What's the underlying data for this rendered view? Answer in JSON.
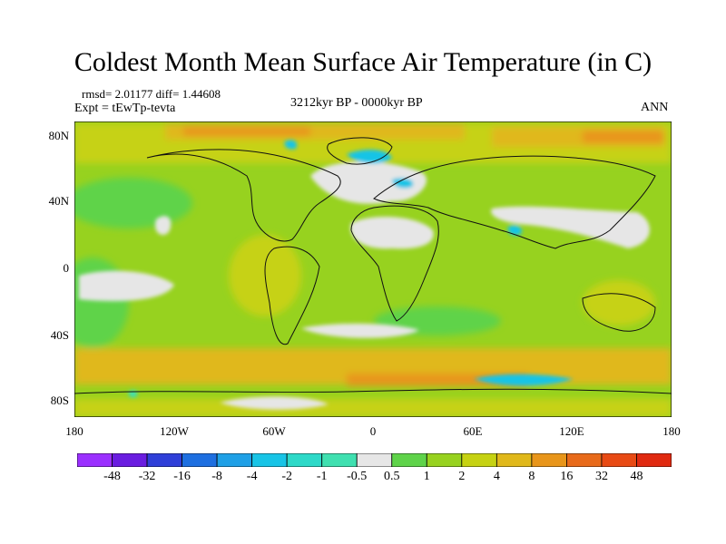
{
  "figure": {
    "title": "Coldest Month Mean Surface Air Temperature (in C)",
    "rmsd_line": "rmsd= 2.01177 diff= 1.44608",
    "expt_line": "Expt = tEwTp-tevta",
    "period": "3212kyr BP - 0000kyr BP",
    "season": "ANN"
  },
  "axes": {
    "lat_labels": [
      "80N",
      "40N",
      "0",
      "40S",
      "80S"
    ],
    "lon_labels": [
      "180",
      "120W",
      "60W",
      "0",
      "60E",
      "120E",
      "180"
    ]
  },
  "colorbar": {
    "labels": [
      "-48",
      "-32",
      "-16",
      "-8",
      "-4",
      "-2",
      "-1",
      "-0.5",
      "0.5",
      "1",
      "2",
      "4",
      "8",
      "16",
      "32",
      "48"
    ],
    "colors": [
      "#9b30ff",
      "#6a1de0",
      "#2f3fd8",
      "#1e6fe0",
      "#1fa0e6",
      "#18c4e6",
      "#2dd9c8",
      "#3fe0b0",
      "#e6e6e6",
      "#5fd34a",
      "#97d21f",
      "#c6d212",
      "#e0b81a",
      "#e8951a",
      "#e86a1a",
      "#e84a14",
      "#e02a10"
    ]
  },
  "map_colors": {
    "base": "#97d21f",
    "warm": "#c6d212",
    "hot": "#e0b81a",
    "warmer": "#e8951a",
    "mild": "#5fd34a",
    "neutral": "#e6e6e6",
    "cool": "#18c4e6",
    "cold": "#3fe0b0",
    "coastline": "#111111"
  }
}
